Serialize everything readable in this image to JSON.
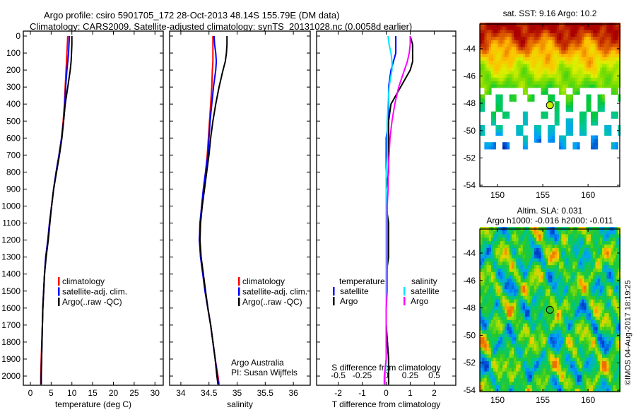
{
  "title": {
    "line1": "Argo profile: csiro 5901705_172 28-Oct-2013 48.14S 155.79E (DM data)",
    "line2": "Climatology: CARS2009. Satellite-adjusted climatology: synTS_20131028.nc (0.0058d earlier)"
  },
  "colors": {
    "climatology": "#ff0000",
    "satellite": "#0000ff",
    "argo": "#000000",
    "sal_satellite": "#00e5ff",
    "sal_argo": "#ff00ff"
  },
  "chart_data": [
    {
      "type": "line",
      "name": "temperature-profile",
      "xlabel": "temperature (deg C)",
      "ylabel": "depth",
      "xlim": [
        -1.7,
        32
      ],
      "ylim": [
        2060,
        0
      ],
      "xticks": [
        0,
        5,
        10,
        15,
        20,
        25,
        30
      ],
      "yticks": [
        0,
        100,
        200,
        300,
        400,
        500,
        600,
        700,
        800,
        900,
        1000,
        1100,
        1200,
        1300,
        1400,
        1500,
        1600,
        1700,
        1800,
        1900,
        2000
      ],
      "depth": [
        0,
        50,
        100,
        150,
        200,
        300,
        400,
        500,
        600,
        700,
        800,
        900,
        1000,
        1100,
        1200,
        1300,
        1400,
        1500,
        1600,
        1700,
        1800,
        1900,
        2000,
        2050
      ],
      "series": [
        {
          "name": "climatology",
          "color": "#ff0000",
          "values": [
            9.0,
            8.9,
            8.8,
            8.7,
            8.6,
            8.4,
            8.2,
            7.9,
            7.5,
            6.9,
            6.2,
            5.6,
            5.1,
            4.6,
            4.2,
            3.7,
            3.4,
            3.2,
            3.0,
            2.9,
            2.75,
            2.6,
            2.5,
            2.5
          ]
        },
        {
          "name": "satellite-adj. clim.",
          "color": "#0000ff",
          "values": [
            9.4,
            9.3,
            9.2,
            9.0,
            8.8,
            8.5,
            8.3,
            8.0,
            7.5,
            6.9,
            6.2,
            5.6,
            5.1,
            4.6,
            4.2,
            3.7,
            3.4,
            3.2,
            3.0,
            2.9,
            2.8,
            2.7,
            2.6,
            2.6
          ]
        },
        {
          "name": "Argo(..raw -QC)",
          "color": "#000000",
          "values": [
            10.0,
            10.0,
            9.9,
            9.8,
            9.6,
            9.0,
            8.4,
            8.0,
            7.6,
            7.0,
            6.3,
            5.6,
            5.1,
            4.7,
            4.3,
            3.8,
            3.4,
            3.2,
            3.0,
            2.9,
            2.8,
            2.7,
            2.6,
            2.6
          ]
        }
      ],
      "legend": [
        "climatology",
        "satellite-adj. clim.",
        "Argo(..raw -QC)"
      ],
      "legend_position": "lower-center"
    },
    {
      "type": "line",
      "name": "salinity-profile",
      "xlabel": "salinity",
      "xlim": [
        33.8,
        36.3
      ],
      "ylim": [
        2060,
        0
      ],
      "xticks": [
        34,
        34.5,
        35,
        35.5,
        36
      ],
      "series": [
        {
          "name": "climatology",
          "color": "#ff0000",
          "values": [
            34.57,
            34.57,
            34.57,
            34.57,
            34.56,
            34.55,
            34.53,
            34.51,
            34.49,
            34.47,
            34.44,
            34.4,
            34.37,
            34.34,
            34.33,
            34.35,
            34.39,
            34.43,
            34.48,
            34.53,
            34.57,
            34.61,
            34.66,
            34.68
          ]
        },
        {
          "name": "satellite-adj. clim.",
          "color": "#0000ff",
          "values": [
            34.59,
            34.6,
            34.62,
            34.63,
            34.62,
            34.58,
            34.55,
            34.52,
            34.5,
            34.48,
            34.44,
            34.4,
            34.37,
            34.34,
            34.33,
            34.35,
            34.39,
            34.43,
            34.48,
            34.53,
            34.57,
            34.61,
            34.65,
            34.67
          ]
        },
        {
          "name": "Argo(..raw -QC)",
          "color": "#000000",
          "values": [
            34.82,
            34.82,
            34.81,
            34.79,
            34.75,
            34.68,
            34.62,
            34.57,
            34.53,
            34.5,
            34.46,
            34.42,
            34.38,
            34.35,
            34.34,
            34.36,
            34.4,
            34.44,
            34.48,
            34.53,
            34.57,
            34.61,
            34.64,
            34.66
          ]
        }
      ],
      "legend": [
        "climatology",
        "satellite-adj. clim.",
        "Argo(..raw -QC)"
      ],
      "note": [
        "Argo Australia",
        "PI: Susan Wijffels"
      ]
    },
    {
      "type": "line",
      "name": "difference-profile",
      "xlabel": "T difference from climatology",
      "x2label": "S difference from climatology",
      "xlim": [
        -2.9,
        2.9
      ],
      "x2lim": [
        -0.725,
        0.725
      ],
      "xticks": [
        -2,
        -1,
        0,
        1,
        2
      ],
      "x2ticks": [
        "-0.5",
        "-0.25",
        "0",
        "0.25",
        "0.5"
      ],
      "x2tick_values": [
        -0.5,
        -0.25,
        0,
        0.25,
        0.5
      ],
      "series": [
        {
          "name": "temperature satellite",
          "color": "#0000ff",
          "values": [
            0.4,
            0.4,
            0.4,
            0.3,
            0.2,
            0.1,
            0.1,
            0.1,
            0.0,
            0.0,
            0.0,
            0.0,
            0.0,
            0.0,
            0.0,
            0.0,
            0.0,
            0.0,
            0.0,
            0.0,
            0.05,
            0.1,
            0.1,
            0.1
          ]
        },
        {
          "name": "temperature Argo",
          "color": "#000000",
          "values": [
            1.0,
            1.1,
            1.1,
            1.1,
            1.0,
            0.6,
            0.2,
            0.1,
            0.1,
            0.1,
            0.1,
            0.0,
            0.0,
            0.1,
            0.1,
            0.1,
            0.0,
            0.0,
            0.0,
            0.0,
            0.05,
            0.1,
            0.1,
            0.1
          ]
        },
        {
          "name": "salinity satellite",
          "color": "#00e5ff",
          "values": [
            0.02,
            0.03,
            0.05,
            0.06,
            0.06,
            0.03,
            0.02,
            0.01,
            0.01,
            0.01,
            0.0,
            0.0,
            0.0,
            0.0,
            0.0,
            0.0,
            0.0,
            0.0,
            0.0,
            0.0,
            0.0,
            0.0,
            -0.01,
            -0.01
          ]
        },
        {
          "name": "salinity Argo",
          "color": "#ff00ff",
          "values": [
            0.25,
            0.25,
            0.24,
            0.22,
            0.19,
            0.13,
            0.09,
            0.06,
            0.04,
            0.03,
            0.02,
            0.02,
            0.01,
            0.01,
            0.01,
            0.01,
            0.01,
            0.01,
            0.0,
            0.0,
            0.0,
            0.0,
            -0.02,
            -0.02
          ]
        }
      ],
      "legend_temperature": {
        "heading": "temperature",
        "items": [
          "satellite",
          "Argo"
        ]
      },
      "legend_salinity": {
        "heading": "salinity",
        "items": [
          "satellite",
          "Argo"
        ]
      }
    },
    {
      "type": "heatmap",
      "name": "sst-map",
      "title": "sat. SST: 9.16 Argo: 10.2",
      "xlim": [
        148.05,
        163.5
      ],
      "ylim": [
        -54.1,
        -42.2
      ],
      "xticks": [
        150,
        155,
        160
      ],
      "yticks": [
        -44,
        -46,
        -48,
        -50,
        -52,
        -54
      ],
      "profile_location": {
        "lon": 155.79,
        "lat": -48.14
      }
    },
    {
      "type": "heatmap",
      "name": "sla-map",
      "title": "Altim. SLA: 0.031",
      "subtitle": "Argo h1000: -0.016 h2000: -0.011",
      "xlim": [
        148.05,
        163.5
      ],
      "ylim": [
        -54.1,
        -42.25
      ],
      "xticks": [
        150,
        155,
        160
      ],
      "yticks": [
        -44,
        -46,
        -48,
        -50,
        -52,
        -54
      ],
      "profile_location": {
        "lon": 155.79,
        "lat": -48.14
      }
    }
  ],
  "footer": {
    "stamp": "©IMOS 04-Aug-2017 18:19:25"
  }
}
